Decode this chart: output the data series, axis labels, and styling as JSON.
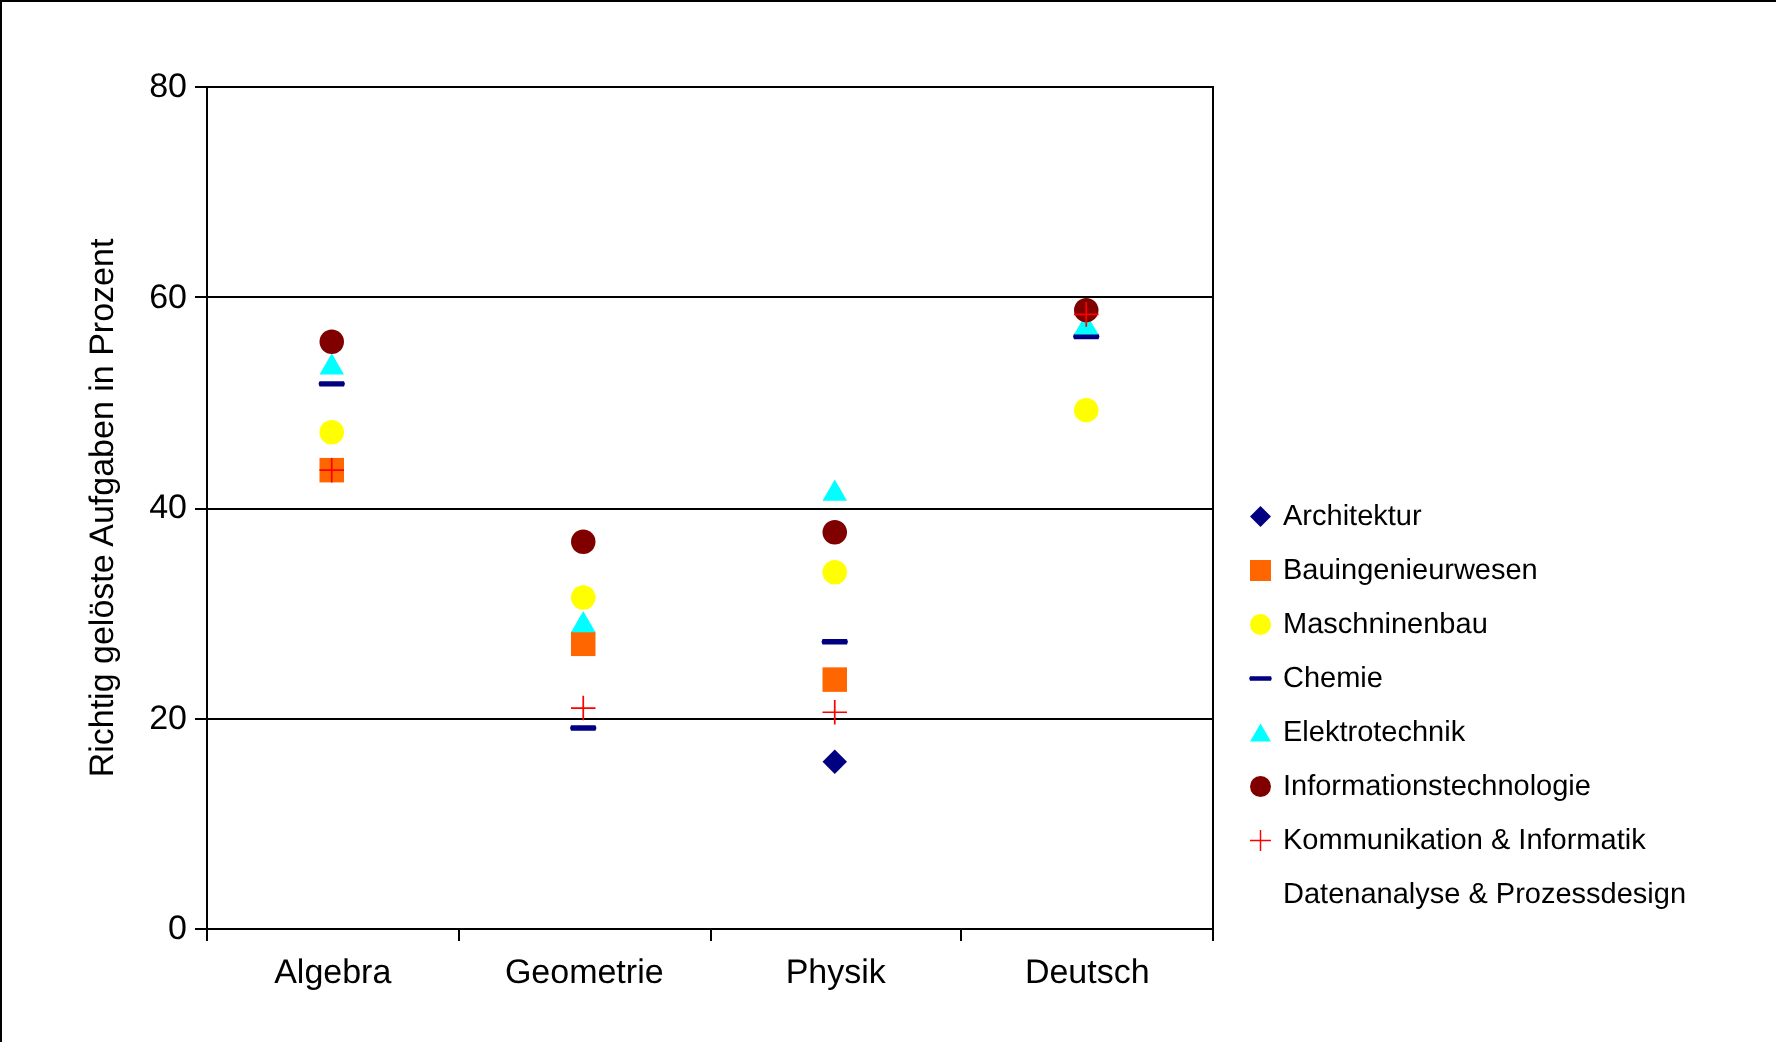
{
  "chart_data": {
    "type": "scatter",
    "ylabel": "Richtig gelöste Aufgaben in Prozent",
    "categories": [
      "Algebra",
      "Geometrie",
      "Physik",
      "Deutsch"
    ],
    "ylim": [
      0,
      80
    ],
    "yticks": [
      0,
      20,
      40,
      60,
      80
    ],
    "grid": "y",
    "legend": "right",
    "series": [
      {
        "name": "Architektur",
        "color": "#000080",
        "marker": "diamond",
        "values": [
          null,
          null,
          15.8,
          null
        ]
      },
      {
        "name": "Bauingenieurwesen",
        "color": "#ff6600",
        "marker": "square",
        "values": [
          43.5,
          27.0,
          23.6,
          null
        ]
      },
      {
        "name": "Maschninenbau",
        "color": "#ffff00",
        "marker": "circle",
        "values": [
          47.1,
          31.4,
          33.8,
          49.2
        ]
      },
      {
        "name": "Chemie",
        "color": "#000080",
        "values": [
          51.7,
          19.0,
          27.2,
          56.2
        ]
      },
      {
        "name": "Elektrotechnik",
        "color": "#00ffff",
        "marker": "triangle",
        "values": [
          53.6,
          29.1,
          41.6,
          57.4
        ]
      },
      {
        "name": "Informationstechnologie",
        "color": "#800000",
        "marker": "circle",
        "values": [
          55.7,
          36.7,
          37.6,
          58.7
        ]
      },
      {
        "name": "Kommunikation & Informatik",
        "color": "#ff0000",
        "marker": "cross",
        "values": [
          43.5,
          20.9,
          20.5,
          58.3
        ]
      },
      {
        "name": "Datenanalyse & Prozessdesign",
        "color": null,
        "marker": "none",
        "values": [
          null,
          null,
          null,
          null
        ]
      }
    ]
  }
}
